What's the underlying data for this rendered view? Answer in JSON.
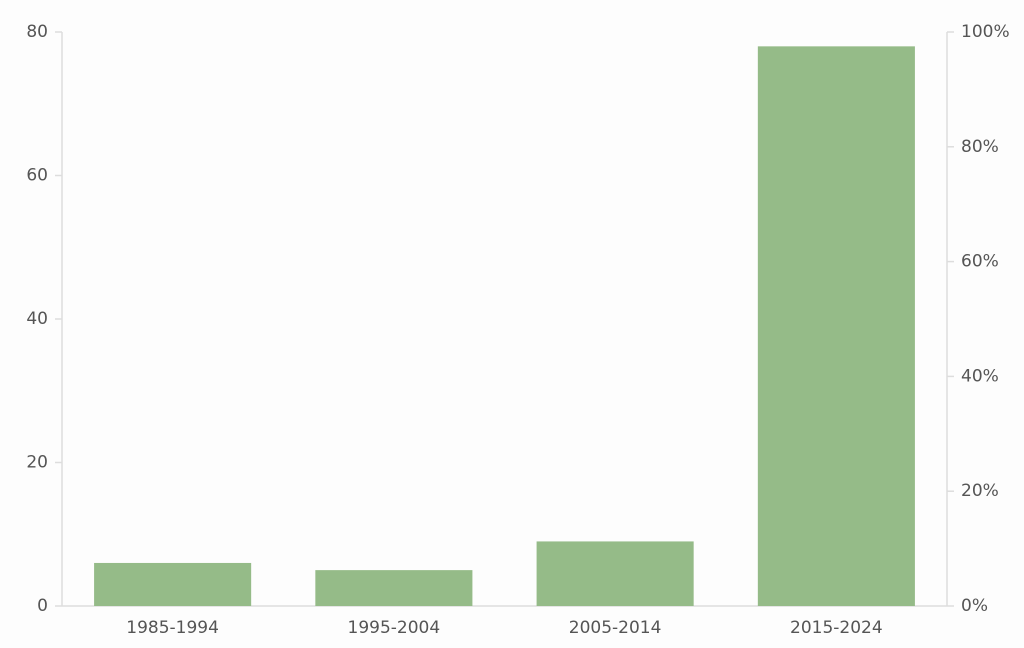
{
  "chart_data": {
    "type": "bar",
    "categories": [
      "1985-1994",
      "1995-2004",
      "2005-2014",
      "2015-2024"
    ],
    "values": [
      6,
      5,
      9,
      78
    ],
    "color": "#95bb88",
    "ylim": [
      0,
      80
    ],
    "yticks": [
      0,
      20,
      40,
      60,
      80
    ],
    "y2lim": [
      0,
      100
    ],
    "y2ticks": [
      {
        "value": 0,
        "label": "0%"
      },
      {
        "value": 20,
        "label": "20%"
      },
      {
        "value": 40,
        "label": "40%"
      },
      {
        "value": 60,
        "label": "60%"
      },
      {
        "value": 80,
        "label": "80%"
      },
      {
        "value": 100,
        "label": "100%"
      }
    ],
    "grid": false
  }
}
